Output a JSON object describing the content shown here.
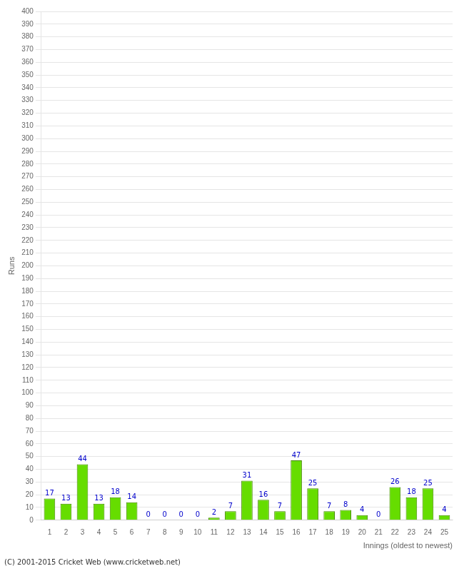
{
  "chart_data": {
    "type": "bar",
    "xlabel": "Innings (oldest to newest)",
    "ylabel": "Runs",
    "categories": [
      "1",
      "2",
      "3",
      "4",
      "5",
      "6",
      "7",
      "8",
      "9",
      "10",
      "11",
      "12",
      "13",
      "14",
      "15",
      "16",
      "17",
      "18",
      "19",
      "20",
      "21",
      "22",
      "23",
      "24",
      "25"
    ],
    "values": [
      17,
      13,
      44,
      13,
      18,
      14,
      0,
      0,
      0,
      0,
      2,
      7,
      31,
      16,
      7,
      47,
      25,
      7,
      8,
      4,
      0,
      26,
      18,
      25,
      4
    ],
    "color": "#66dd00",
    "ylim": [
      0,
      400
    ],
    "yticks": [
      0,
      10,
      20,
      30,
      40,
      50,
      60,
      70,
      80,
      90,
      100,
      110,
      120,
      130,
      140,
      150,
      160,
      170,
      180,
      190,
      200,
      210,
      220,
      230,
      240,
      250,
      260,
      270,
      280,
      290,
      300,
      310,
      320,
      330,
      340,
      350,
      360,
      370,
      380,
      390,
      400
    ],
    "grid": true,
    "data_labels": true,
    "annotations": [
      "(C) 2001-2015 Cricket Web (www.cricketweb.net)"
    ]
  }
}
